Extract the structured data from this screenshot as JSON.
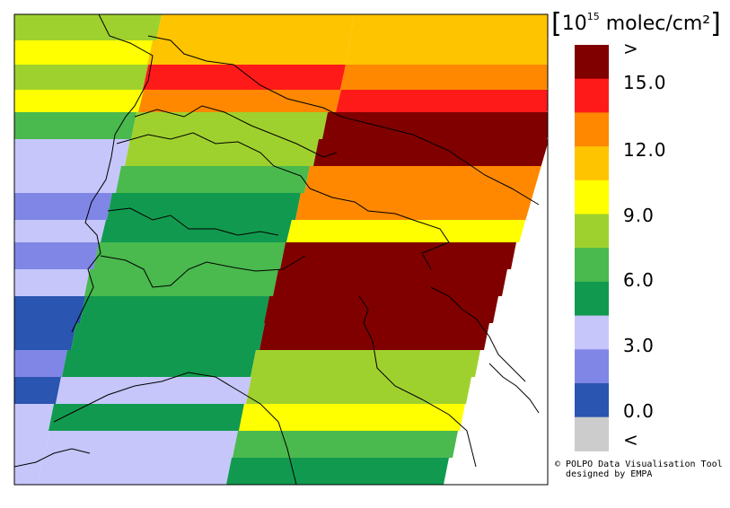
{
  "unit_label": {
    "prefix": "10",
    "exponent": "15",
    "suffix": "molec/cm²"
  },
  "colorbar": {
    "colors": [
      "#cccccc",
      "#2a55b0",
      "#7f86e6",
      "#c6c6fa",
      "#119a4f",
      "#4ab94e",
      "#9fd12e",
      "#ffff00",
      "#ffc400",
      "#ff8800",
      "#ff1a1a",
      "#800000"
    ],
    "tick_labels": [
      ">",
      "15.0",
      "12.0",
      "9.0",
      "6.0",
      "3.0",
      "0.0",
      "<"
    ]
  },
  "credit": {
    "line1": "© POLPO Data Visualisation Tool",
    "line2": "designed by EMPA"
  }
}
